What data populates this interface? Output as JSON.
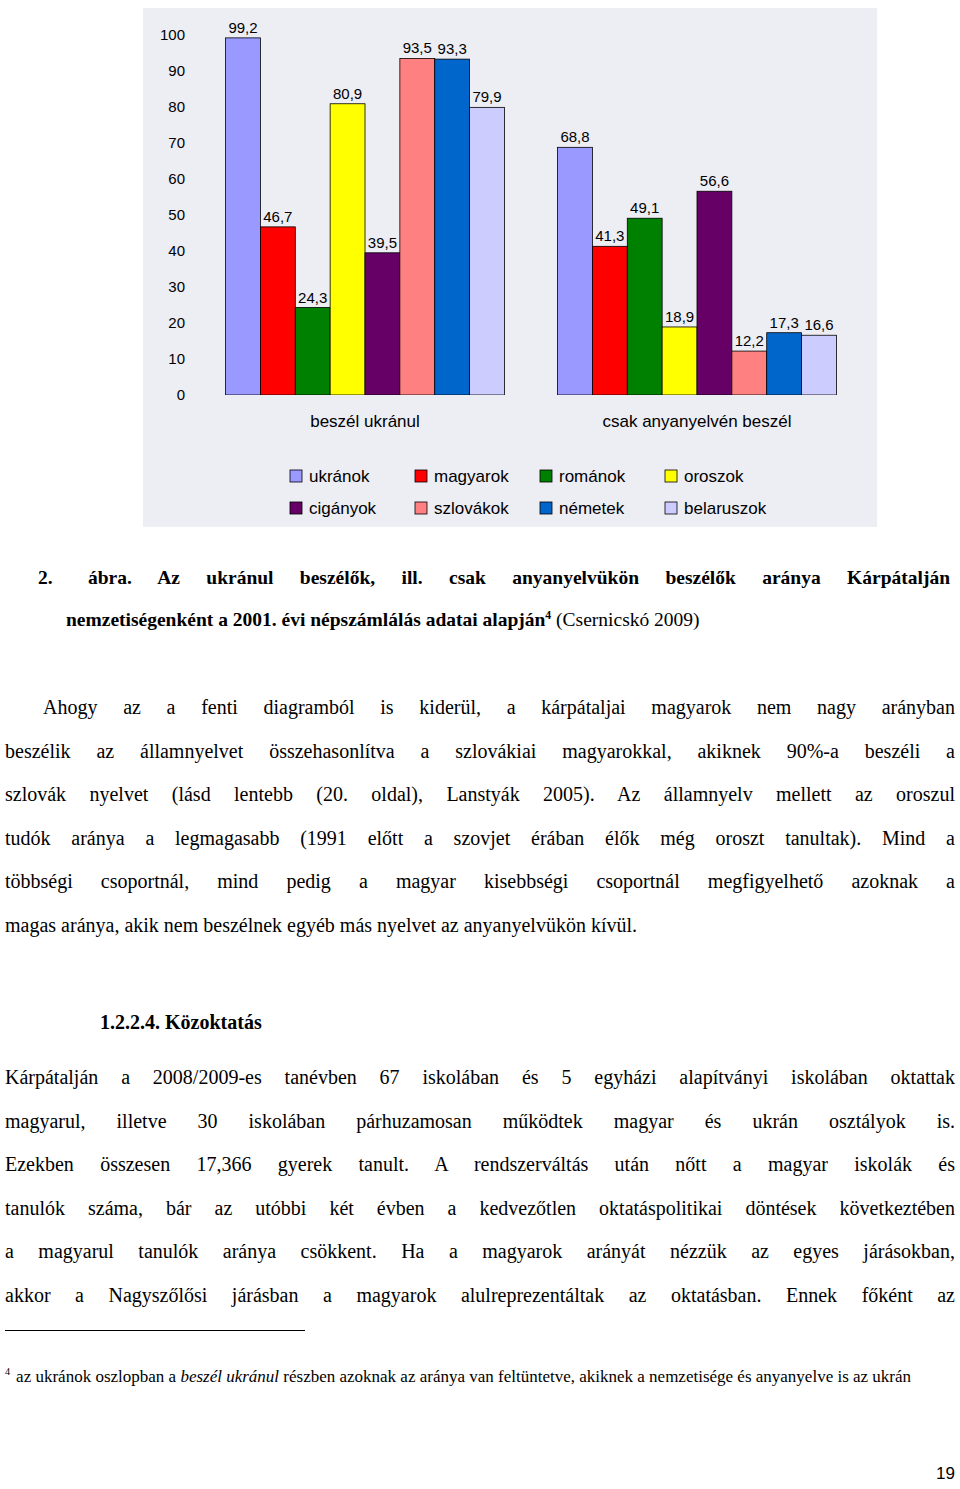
{
  "chart_data": {
    "type": "bar",
    "categories": [
      "beszél ukránul",
      "csak anyanyelvén beszél"
    ],
    "series": [
      {
        "name": "ukránok",
        "color": "#9999ff",
        "values": [
          99.2,
          68.8
        ],
        "value_labels": [
          "99,2",
          "68,8"
        ]
      },
      {
        "name": "magyarok",
        "color": "#ff0000",
        "values": [
          46.7,
          41.3
        ],
        "value_labels": [
          "46,7",
          "41,3"
        ]
      },
      {
        "name": "románok",
        "color": "#008000",
        "values": [
          24.3,
          49.1
        ],
        "value_labels": [
          "24,3",
          "49,1"
        ]
      },
      {
        "name": "oroszok",
        "color": "#ffff00",
        "values": [
          80.9,
          18.9
        ],
        "value_labels": [
          "80,9",
          "18,9"
        ]
      },
      {
        "name": "cigányok",
        "color": "#660066",
        "values": [
          39.5,
          56.6
        ],
        "value_labels": [
          "39,5",
          "56,6"
        ]
      },
      {
        "name": "szlovákok",
        "color": "#ff8080",
        "values": [
          93.5,
          12.2
        ],
        "value_labels": [
          "93,5",
          "12,2"
        ]
      },
      {
        "name": "németek",
        "color": "#0066cc",
        "values": [
          93.3,
          17.3
        ],
        "value_labels": [
          "93,3",
          "17,3"
        ]
      },
      {
        "name": "belaruszok",
        "color": "#ccccff",
        "values": [
          79.9,
          16.6
        ],
        "value_labels": [
          "79,9",
          "16,6"
        ]
      }
    ],
    "ylim": [
      0,
      100
    ],
    "yticks": [
      0,
      10,
      20,
      30,
      40,
      50,
      60,
      70,
      80,
      90,
      100
    ],
    "grid": false,
    "legend": "bottom",
    "data_labels": true
  },
  "caption": {
    "number": "2.",
    "lines": [
      "ábra. Az ukránul beszélők, ill. csak anyanyelvükön beszélők aránya Kárpátalján",
      "nemzetiségenként a 2001. évi népszámlálás adatai alapján"
    ],
    "footnote_ref": "4",
    "source": "(Csernicskó 2009)"
  },
  "paragraphs": [
    {
      "lines": [
        "Ahogy az a fenti diagramból is kiderül, a kárpátaljai magyarok nem nagy arányban",
        "beszélik az államnyelvet összehasonlítva a szlovákiai magyarokkal, akiknek 90%-a beszéli a",
        "szlovák nyelvet (lásd lentebb (20. oldal), Lanstyák 2005). Az államnyelv mellett az oroszul",
        "tudók aránya a legmagasabb (1991 előtt a szovjet érában élők még oroszt tanultak). Mind a",
        "többségi csoportnál, mind pedig a magyar kisebbségi csoportnál megfigyelhető azoknak a",
        "magas aránya, akik nem beszélnek egyéb más nyelvet az anyanyelvükön kívül."
      ]
    },
    {
      "heading": "1.2.2.4. Közoktatás",
      "lines": [
        "Kárpátalján a 2008/2009-es tanévben 67 iskolában és 5 egyházi alapítványi iskolában oktattak",
        "magyarul, illetve 30 iskolában párhuzamosan működtek magyar és ukrán osztályok is.",
        "Ezekben összesen 17,366 gyerek tanult. A rendszerváltás után nőtt a magyar iskolák és",
        "tanulók száma, bár az utóbbi két évben a kedvezőtlen oktatáspolitikai döntések következtében",
        "a magyarul tanulók aránya csökkent. Ha a magyarok arányát nézzük az egyes járásokban,",
        "akkor a Nagyszőlősi járásban a magyarok alulreprezentáltak az oktatásban. Ennek főként az"
      ]
    }
  ],
  "footnote": {
    "number": "4",
    "parts": [
      {
        "text": "az ukránok oszlopban a ",
        "italic": false
      },
      {
        "text": "beszél ukránul",
        "italic": true
      },
      {
        "text": " részben azoknak az aránya van feltüntetve, akiknek a nemzetisége és anyanyelve is az ukrán",
        "italic": false
      }
    ]
  },
  "page_number": "19"
}
